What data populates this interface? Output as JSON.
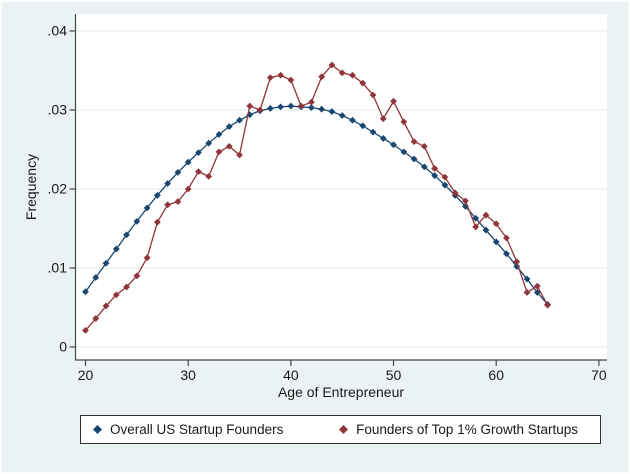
{
  "figure": {
    "background_color": "#eaf2f3",
    "plot_background": "#ffffff",
    "gridline_color": "#e2ebed",
    "axis_color": "#474747",
    "text_color": "#1a1a1a"
  },
  "chart_data": {
    "type": "line",
    "title": "",
    "xlabel": "Age of Entrepreneur",
    "ylabel": "Frequency",
    "grid": true,
    "legend_position": "bottom",
    "xlim": [
      19,
      71
    ],
    "ylim": [
      0,
      0.042
    ],
    "x_ticks": [
      20,
      30,
      40,
      50,
      60,
      70
    ],
    "y_ticks": [
      0,
      0.01,
      0.02,
      0.03,
      0.04
    ],
    "y_tick_labels": [
      "0",
      ".01",
      ".02",
      ".03",
      ".04"
    ],
    "x": [
      20,
      21,
      22,
      23,
      24,
      25,
      26,
      27,
      28,
      29,
      30,
      31,
      32,
      33,
      34,
      35,
      36,
      37,
      38,
      39,
      40,
      41,
      42,
      43,
      44,
      45,
      46,
      47,
      48,
      49,
      50,
      51,
      52,
      53,
      54,
      55,
      56,
      57,
      58,
      59,
      60,
      61,
      62,
      63,
      64,
      65
    ],
    "series": [
      {
        "name": "Overall US Startup Founders",
        "color": "#1a476f",
        "marker": "diamond",
        "values": [
          0.007,
          0.0088,
          0.0106,
          0.0124,
          0.0142,
          0.0159,
          0.0176,
          0.0192,
          0.0207,
          0.0221,
          0.0234,
          0.0246,
          0.0258,
          0.0269,
          0.0279,
          0.0287,
          0.0294,
          0.0299,
          0.0302,
          0.0304,
          0.0305,
          0.0304,
          0.0303,
          0.0301,
          0.0298,
          0.0293,
          0.0287,
          0.028,
          0.0272,
          0.0264,
          0.0256,
          0.0247,
          0.0238,
          0.0228,
          0.0217,
          0.0205,
          0.0192,
          0.0178,
          0.0163,
          0.0148,
          0.0133,
          0.0118,
          0.0102,
          0.0086,
          0.0069,
          0.0054
        ]
      },
      {
        "name": "Founders of Top 1% Growth Startups",
        "color": "#90353b",
        "marker": "diamond",
        "values": [
          0.0021,
          0.0036,
          0.0052,
          0.0066,
          0.0076,
          0.009,
          0.0113,
          0.0158,
          0.018,
          0.0184,
          0.02,
          0.0222,
          0.0216,
          0.0247,
          0.0254,
          0.0243,
          0.0305,
          0.03,
          0.0341,
          0.0344,
          0.0338,
          0.0305,
          0.031,
          0.0342,
          0.0357,
          0.0347,
          0.0344,
          0.0334,
          0.0319,
          0.0289,
          0.0311,
          0.0285,
          0.026,
          0.0254,
          0.0226,
          0.0215,
          0.0195,
          0.0185,
          0.0152,
          0.0167,
          0.0156,
          0.0138,
          0.0108,
          0.0069,
          0.0077,
          0.0053
        ]
      }
    ]
  }
}
